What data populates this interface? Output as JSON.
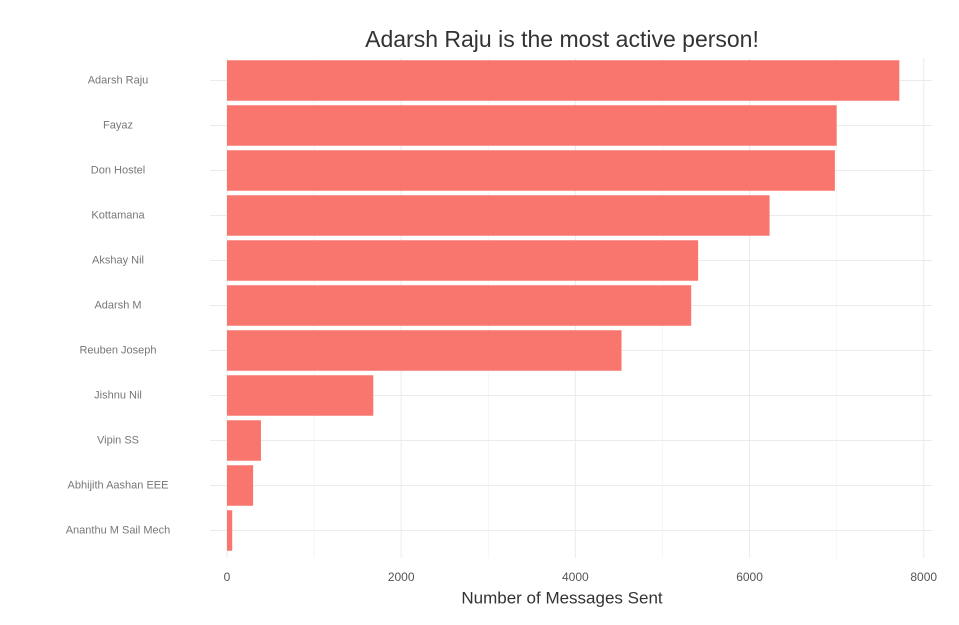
{
  "chart_data": {
    "type": "bar",
    "orientation": "horizontal",
    "title": "Adarsh Raju is the most active person!",
    "x_label": "Number of Messages Sent",
    "categories": [
      "Adarsh Raju",
      "Fayaz",
      "Don Hostel",
      "Kottamana",
      "Akshay Nil",
      "Adarsh M",
      "Reuben Joseph",
      "Jishnu Nil",
      "Vipin SS",
      "Abhijith Aashan EEE",
      "Ananthu M Sail Mech"
    ],
    "values": [
      7720,
      7000,
      6980,
      6230,
      5410,
      5330,
      4530,
      1680,
      390,
      300,
      60
    ],
    "color": "#f8766d",
    "xlim": [
      -195,
      8095
    ],
    "xticks": [
      0,
      2000,
      4000,
      6000,
      8000
    ],
    "grid": true
  }
}
